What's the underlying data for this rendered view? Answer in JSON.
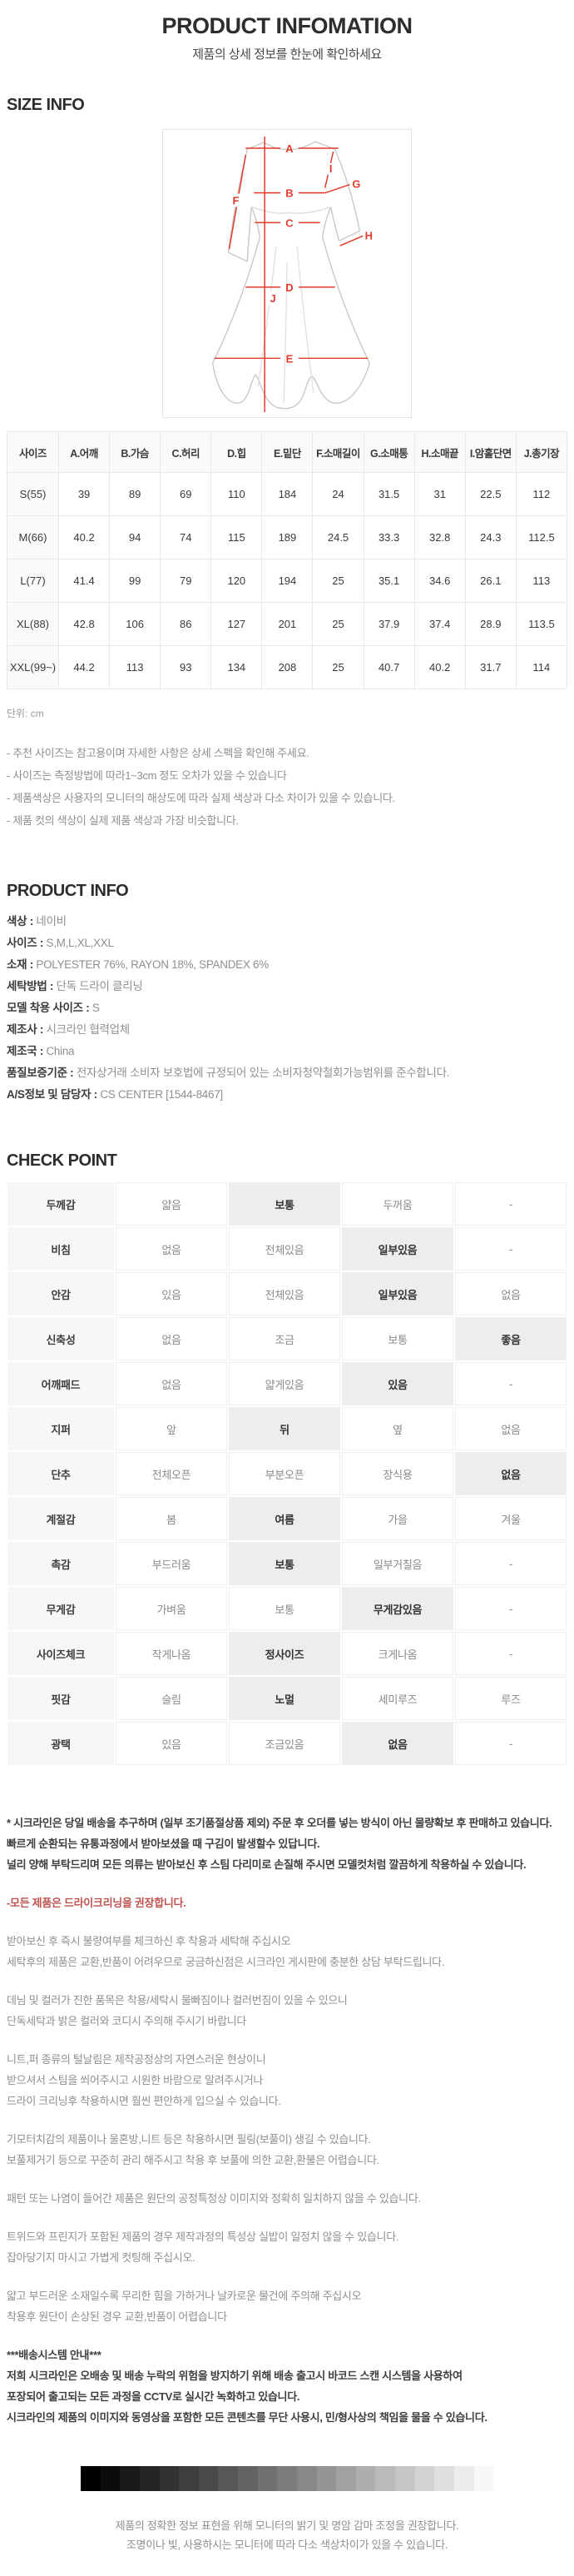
{
  "header": {
    "title": "PRODUCT INFOMATION",
    "subtitle": "제품의 상세 정보를 한눈에 확인하세요"
  },
  "colors": {
    "measure_line_red": "#e23b2c",
    "notice_red": "#bf5350",
    "selected_cell_bg": "#ededed"
  },
  "size_info": {
    "heading": "SIZE INFO",
    "diagram": {
      "labels": [
        "A",
        "B",
        "C",
        "D",
        "E",
        "F",
        "G",
        "H",
        "I",
        "J"
      ]
    },
    "table": {
      "columns": [
        "사이즈",
        "A.어깨",
        "B.가슴",
        "C.허리",
        "D.힙",
        "E.밑단",
        "F.소매길이",
        "G.소매통",
        "H.소매끝",
        "I.암홀단면",
        "J.총기장"
      ],
      "rows": [
        {
          "size": "S(55)",
          "values": [
            "39",
            "89",
            "69",
            "110",
            "184",
            "24",
            "31.5",
            "31",
            "22.5",
            "112"
          ]
        },
        {
          "size": "M(66)",
          "values": [
            "40.2",
            "94",
            "74",
            "115",
            "189",
            "24.5",
            "33.3",
            "32.8",
            "24.3",
            "112.5"
          ]
        },
        {
          "size": "L(77)",
          "values": [
            "41.4",
            "99",
            "79",
            "120",
            "194",
            "25",
            "35.1",
            "34.6",
            "26.1",
            "113"
          ]
        },
        {
          "size": "XL(88)",
          "values": [
            "42.8",
            "106",
            "86",
            "127",
            "201",
            "25",
            "37.9",
            "37.4",
            "28.9",
            "113.5"
          ]
        },
        {
          "size": "XXL(99~)",
          "values": [
            "44.2",
            "113",
            "93",
            "134",
            "208",
            "25",
            "40.7",
            "40.2",
            "31.7",
            "114"
          ]
        }
      ]
    },
    "unit_note": "단위: cm",
    "notes": [
      "- 추천 사이즈는 참고용이며 자세한 사항은 상세 스펙을 확인해 주세요.",
      "- 사이즈는 측정방법에 따라1~3cm 정도 오차가 있을 수 있습니다",
      "- 제품색상은 사용자의 모니터의 해상도에 따라 실제 색상과 다소 차이가 있을 수 있습니다.",
      "- 제품 컷의 색상이 실제 제품 색상과 가장 비슷합니다."
    ]
  },
  "product_info": {
    "heading": "PRODUCT INFO",
    "separator": " : ",
    "fields": [
      {
        "label": "색상",
        "value": "네이비"
      },
      {
        "label": "사이즈",
        "value": "S,M,L,XL,XXL"
      },
      {
        "label": "소재",
        "value": "POLYESTER 76%, RAYON 18%, SPANDEX 6%"
      },
      {
        "label": "세탁방법",
        "value": "단독 드라이 클리닝"
      },
      {
        "label": "모델 착용 사이즈",
        "value": "S"
      },
      {
        "label": "제조사",
        "value": "시크라인 협력업체"
      },
      {
        "label": "제조국",
        "value": "China"
      },
      {
        "label": "품질보증기준",
        "value": "전자상거래 소비자 보호법에 규정되어 있는 소비자청약철회가능범위를 준수합니다."
      },
      {
        "label": "A/S정보 및 담당자",
        "value": "CS CENTER [1544-8467]"
      }
    ]
  },
  "check_point": {
    "heading": "CHECK POINT",
    "rows": [
      {
        "label": "두께감",
        "options": [
          "얇음",
          "보통",
          "두꺼움",
          "-"
        ],
        "selected": 1
      },
      {
        "label": "비침",
        "options": [
          "없음",
          "전체있음",
          "일부있음",
          "-"
        ],
        "selected": 2
      },
      {
        "label": "안감",
        "options": [
          "있음",
          "전체있음",
          "일부있음",
          "없음"
        ],
        "selected": 2
      },
      {
        "label": "신축성",
        "options": [
          "없음",
          "조금",
          "보통",
          "좋음"
        ],
        "selected": 3
      },
      {
        "label": "어깨패드",
        "options": [
          "없음",
          "얇게있음",
          "있음",
          "-"
        ],
        "selected": 2
      },
      {
        "label": "지퍼",
        "options": [
          "앞",
          "뒤",
          "옆",
          "없음"
        ],
        "selected": 1
      },
      {
        "label": "단추",
        "options": [
          "전체오픈",
          "부분오픈",
          "장식용",
          "없음"
        ],
        "selected": 3
      },
      {
        "label": "계절감",
        "options": [
          "봄",
          "여름",
          "가을",
          "겨울"
        ],
        "selected": 1
      },
      {
        "label": "촉감",
        "options": [
          "부드러움",
          "보통",
          "일부거칠음",
          "-"
        ],
        "selected": 1
      },
      {
        "label": "무게감",
        "options": [
          "가벼움",
          "보통",
          "무게감있음",
          "-"
        ],
        "selected": 2
      },
      {
        "label": "사이즈체크",
        "options": [
          "작게나옴",
          "정사이즈",
          "크게나옴",
          "-"
        ],
        "selected": 1
      },
      {
        "label": "핏감",
        "options": [
          "슬림",
          "노멀",
          "세미루즈",
          "루즈"
        ],
        "selected": 1
      },
      {
        "label": "광택",
        "options": [
          "있음",
          "조금있음",
          "없음",
          "-"
        ],
        "selected": 2
      }
    ]
  },
  "notices": [
    {
      "text": "* 시크라인은 당일 배송을 추구하며 (일부 조기품절상품 제외) 주문 후 오더를 넣는 방식이 아닌 물량확보 후 판매하고 있습니다.",
      "style": "bold",
      "gap": false
    },
    {
      "text": "빠르게 순환되는 유통과정에서 받아보셨을 때 구김이 발생할수 있답니다.",
      "style": "bold",
      "gap": false
    },
    {
      "text": "널리 양해 부탁드리며 모든 의류는 받아보신 후 스팀 다리미로 손질해 주시면 모델컷처럼 깔끔하게 착용하실 수 있습니다.",
      "style": "bold",
      "gap": false
    },
    {
      "text": "-모든 제품은 드라이크리닝을 권장합니다.",
      "style": "red",
      "gap": true
    },
    {
      "text": "받아보신 후 즉시 불량여부를 체크하신 후 착용과 세탁해 주십시오",
      "style": "normal",
      "gap": true
    },
    {
      "text": "세탁후의 제품은 교환,반품이 어려우므로 궁금하신점은 시크라인 게시판에 충분한 상담 부탁드립니다.",
      "style": "normal",
      "gap": false
    },
    {
      "text": "데님 및 컬러가 진한 품목은 착용/세탁시 물빠짐이나 컬러번짐이 있을 수 있으니",
      "style": "normal",
      "gap": true
    },
    {
      "text": "단독세탁과 밝은 컬러와 코디시 주의해 주시기 바랍니다",
      "style": "normal",
      "gap": false
    },
    {
      "text": "니트,퍼 종류의 털날림은 제작공정상의 자연스러운 현상이니",
      "style": "normal",
      "gap": true
    },
    {
      "text": "받으셔서 스팀을 쐬어주시고 시원한 바람으로 말려주시거나",
      "style": "normal",
      "gap": false
    },
    {
      "text": "드라이 크리닝후 착용하시면 훨씬 편안하게 입으실 수 있습니다.",
      "style": "normal",
      "gap": false
    },
    {
      "text": "기모터치감의 제품이나 울혼방,니트 등은 착용하시면 필링(보풀이) 생길 수 있습니다.",
      "style": "normal",
      "gap": true
    },
    {
      "text": "보풀제거기 등으로 꾸준히 관리 해주시고 착용 후 보풀에 의한 교환,환불은 어렵습니다.",
      "style": "normal",
      "gap": false
    },
    {
      "text": "패턴 또는 나염이 들어간 제품은 원단의 공정특정상 이미지와 정확히 일치하지 않을 수 있습니다.",
      "style": "normal",
      "gap": true
    },
    {
      "text": "트위드와 프린지가 포함된 제품의 경우 제작과정의 특성상 실밥이 일정치 않을 수 있습니다.",
      "style": "normal",
      "gap": true
    },
    {
      "text": "잡아당기지 마시고 가볍게 컷팅해 주십시오.",
      "style": "normal",
      "gap": false
    },
    {
      "text": "얇고 부드러운 소재일수록 무리한 힘을 가하거나 날카로운 물건에 주의해 주십시오",
      "style": "normal",
      "gap": true
    },
    {
      "text": "착용후 원단이 손상된 경우 교환,반품이 어렵습니다",
      "style": "normal",
      "gap": false
    },
    {
      "text": "***배송시스템 안내***",
      "style": "bold",
      "gap": true
    },
    {
      "text": "저희 시크라인은 오배송 및 배송 누락의 위험을 방지하기 위해 배송 출고시 바코드 스캔 시스템을 사용하여",
      "style": "bold",
      "gap": false
    },
    {
      "text": "포장되어 출고되는 모든 과정을 CCTV로 실시간 녹화하고 있습니다.",
      "style": "bold",
      "gap": false
    },
    {
      "text": "시크라인의 제품의 이미지와 동영상을 포함한 모든 콘텐츠를 무단 사용시, 민/형사상의 책임을 물을 수 있습니다.",
      "style": "bold",
      "gap": false
    }
  ],
  "calibration": {
    "steps": 21
  },
  "footer": {
    "lines": [
      "제품의 정확한 정보 표현을 위해 모니터의 밝기 및 명암 감마 조정을 권장합니다.",
      "조명이나 빛, 사용하시는 모니터에 따라 다소 색상차이가 있을 수 있습니다."
    ]
  }
}
